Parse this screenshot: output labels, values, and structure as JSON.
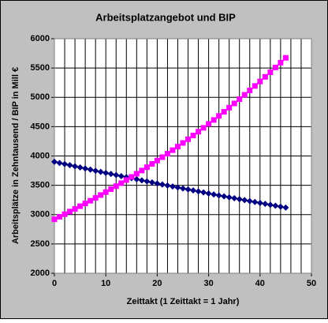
{
  "chart_data": {
    "type": "line",
    "title": "Arbeitsplatzangebot und BIP",
    "x_label": "Zeittakt (1 Zeittakt = 1 Jahr)",
    "y_label": "Arbeitsplätze in Zehntausend / BIP in Mill €",
    "x": [
      0,
      1,
      2,
      3,
      4,
      5,
      6,
      7,
      8,
      9,
      10,
      11,
      12,
      13,
      14,
      15,
      16,
      17,
      18,
      19,
      20,
      21,
      22,
      23,
      24,
      25,
      26,
      27,
      28,
      29,
      30,
      31,
      32,
      33,
      34,
      35,
      36,
      37,
      38,
      39,
      40,
      41,
      42,
      43,
      44,
      45
    ],
    "series": [
      {
        "color": "#000080",
        "marker": "diamond",
        "values": [
          3900,
          3881,
          3862,
          3843,
          3824,
          3805,
          3786,
          3767,
          3748,
          3729,
          3711,
          3693,
          3675,
          3657,
          3639,
          3621,
          3603,
          3585,
          3567,
          3549,
          3531,
          3514,
          3497,
          3480,
          3463,
          3446,
          3429,
          3412,
          3395,
          3378,
          3361,
          3344,
          3327,
          3311,
          3295,
          3279,
          3263,
          3247,
          3231,
          3215,
          3199,
          3183,
          3167,
          3151,
          3135,
          3120
        ]
      },
      {
        "color": "#ff00ff",
        "marker": "square",
        "values": [
          2920,
          2963,
          3007,
          3052,
          3097,
          3143,
          3190,
          3237,
          3285,
          3334,
          3384,
          3434,
          3485,
          3537,
          3590,
          3643,
          3697,
          3752,
          3808,
          3865,
          3922,
          3980,
          4039,
          4099,
          4160,
          4222,
          4285,
          4349,
          4414,
          4480,
          4547,
          4614,
          4683,
          4753,
          4824,
          4896,
          4969,
          5043,
          5118,
          5194,
          5271,
          5349,
          5428,
          5509,
          5591,
          5674
        ]
      }
    ],
    "xlim": [
      0,
      50
    ],
    "xticks": [
      0,
      10,
      20,
      30,
      40,
      50
    ],
    "xgridlines": [
      0,
      2,
      4,
      6,
      8,
      10,
      12,
      14,
      16,
      18,
      20,
      22,
      24,
      26,
      28,
      30,
      32,
      34,
      36,
      38,
      40,
      42,
      44,
      46,
      48,
      50
    ],
    "ylim": [
      2000,
      6000
    ],
    "yticks": [
      2000,
      2500,
      3000,
      3500,
      4000,
      4500,
      5000,
      5500,
      6000
    ],
    "grid": true
  }
}
